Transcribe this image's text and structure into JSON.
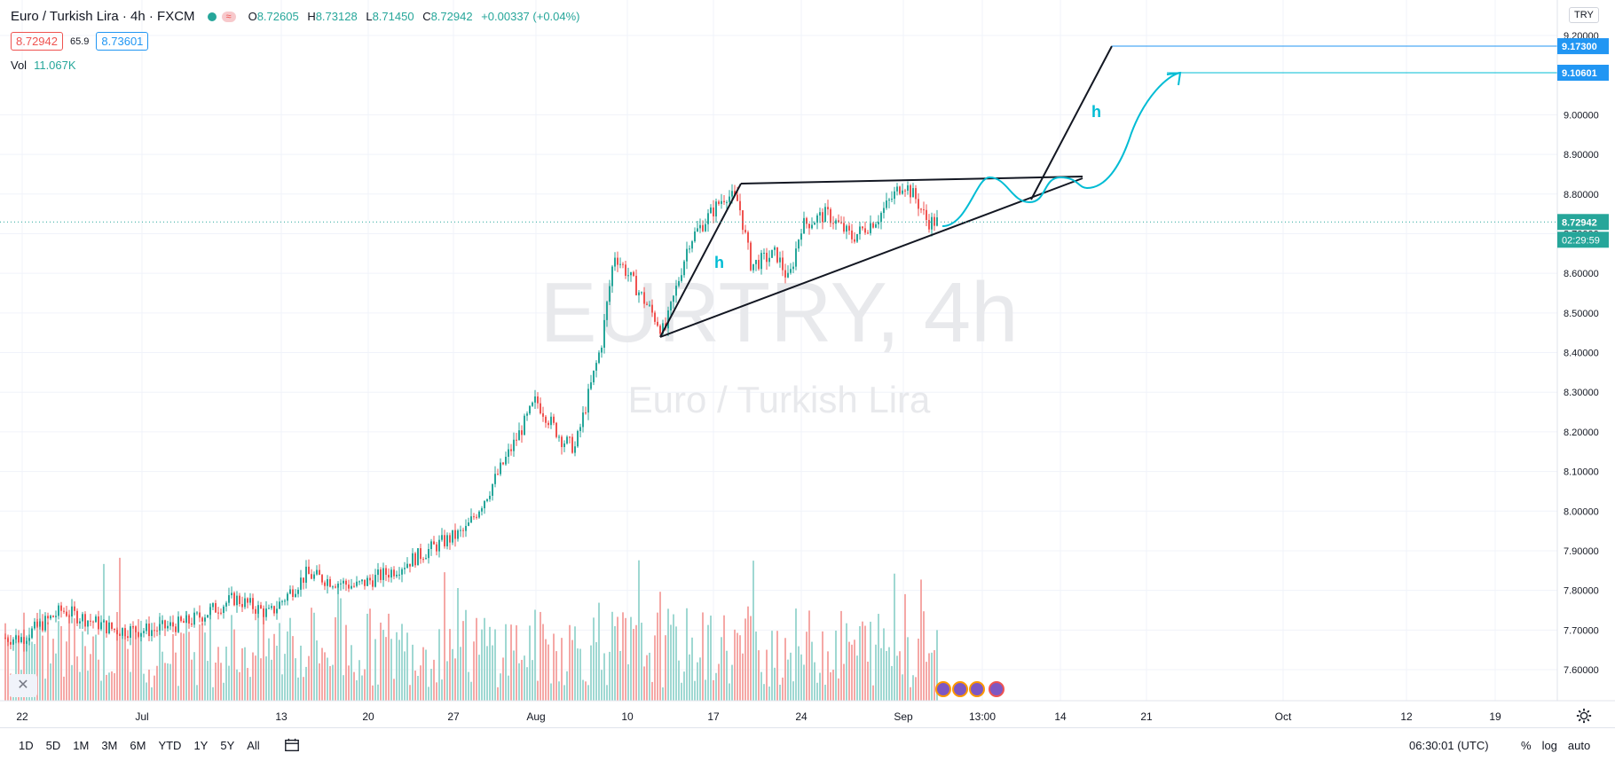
{
  "header": {
    "symbol_title": "Euro / Turkish Lira · 4h · FXCM",
    "ohlc": {
      "o_label": "O",
      "o": "8.72605",
      "h_label": "H",
      "h": "8.73128",
      "l_label": "L",
      "l": "8.71450",
      "c_label": "C",
      "c": "8.72942",
      "change": "+0.00337 (+0.04%)"
    },
    "sell_price": "8.72942",
    "spread": "65.9",
    "buy_price": "8.73601",
    "volume_label": "Vol",
    "volume_value": "11.067K",
    "currency_badge": "TRY"
  },
  "watermark": {
    "main": "EURTRY, 4h",
    "sub": "Euro / Turkish Lira"
  },
  "bottom_toolbar": {
    "ranges": [
      "1D",
      "5D",
      "1M",
      "3M",
      "6M",
      "YTD",
      "1Y",
      "5Y",
      "All"
    ],
    "clock": "06:30:01 (UTC)",
    "percent_label": "%",
    "log_label": "log",
    "auto_label": "auto"
  },
  "chart_data": {
    "type": "candlestick",
    "title": "EURTRY, 4h",
    "ylim": [
      7.55,
      9.22
    ],
    "y_ticks": [
      "9.20000",
      "9.00000",
      "8.90000",
      "8.80000",
      "8.70000",
      "8.60000",
      "8.50000",
      "8.40000",
      "8.30000",
      "8.20000",
      "8.10000",
      "8.00000",
      "7.90000",
      "7.80000",
      "7.70000",
      "7.60000"
    ],
    "x_ticks": [
      "22",
      "Jul",
      "13",
      "20",
      "27",
      "Aug",
      "10",
      "17",
      "24",
      "Sep",
      "13:00",
      "14",
      "21",
      "Oct",
      "12",
      "19"
    ],
    "price_labels": {
      "current_price": "8.72942",
      "countdown": "02:29:59",
      "target_black": "9.17300",
      "target_cyan": "9.10601"
    },
    "close_path": [
      {
        "x": "Jun 22",
        "y": 7.68
      },
      {
        "x": "Jun 25",
        "y": 7.75
      },
      {
        "x": "Jun 29",
        "y": 7.7
      },
      {
        "x": "Jul 2",
        "y": 7.7
      },
      {
        "x": "Jul 5",
        "y": 7.72
      },
      {
        "x": "Jul 9",
        "y": 7.78
      },
      {
        "x": "Jul 12",
        "y": 7.74
      },
      {
        "x": "Jul 15",
        "y": 7.84
      },
      {
        "x": "Jul 19",
        "y": 7.81
      },
      {
        "x": "Jul 22",
        "y": 7.85
      },
      {
        "x": "Jul 26",
        "y": 7.92
      },
      {
        "x": "Jul 28",
        "y": 7.95
      },
      {
        "x": "Jul 30",
        "y": 8.05
      },
      {
        "x": "Aug 2",
        "y": 8.22
      },
      {
        "x": "Aug 3",
        "y": 8.28
      },
      {
        "x": "Aug 5",
        "y": 8.18
      },
      {
        "x": "Aug 6",
        "y": 8.16
      },
      {
        "x": "Aug 8",
        "y": 8.42
      },
      {
        "x": "Aug 9",
        "y": 8.65
      },
      {
        "x": "Aug 10",
        "y": 8.6
      },
      {
        "x": "Aug 12",
        "y": 8.5
      },
      {
        "x": "Aug 13",
        "y": 8.45
      },
      {
        "x": "Aug 15",
        "y": 8.68
      },
      {
        "x": "Aug 18",
        "y": 8.8
      },
      {
        "x": "Aug 19",
        "y": 8.78
      },
      {
        "x": "Aug 20",
        "y": 8.62
      },
      {
        "x": "Aug 22",
        "y": 8.65
      },
      {
        "x": "Aug 23",
        "y": 8.58
      },
      {
        "x": "Aug 24",
        "y": 8.72
      },
      {
        "x": "Aug 26",
        "y": 8.75
      },
      {
        "x": "Aug 28",
        "y": 8.69
      },
      {
        "x": "Aug 30",
        "y": 8.74
      },
      {
        "x": "Sep 1",
        "y": 8.83
      },
      {
        "x": "Sep 2",
        "y": 8.79
      },
      {
        "x": "Sep 3",
        "y": 8.73
      }
    ],
    "annotation_label": "h",
    "volume": {
      "label": "Vol",
      "last": "11.067K"
    }
  }
}
